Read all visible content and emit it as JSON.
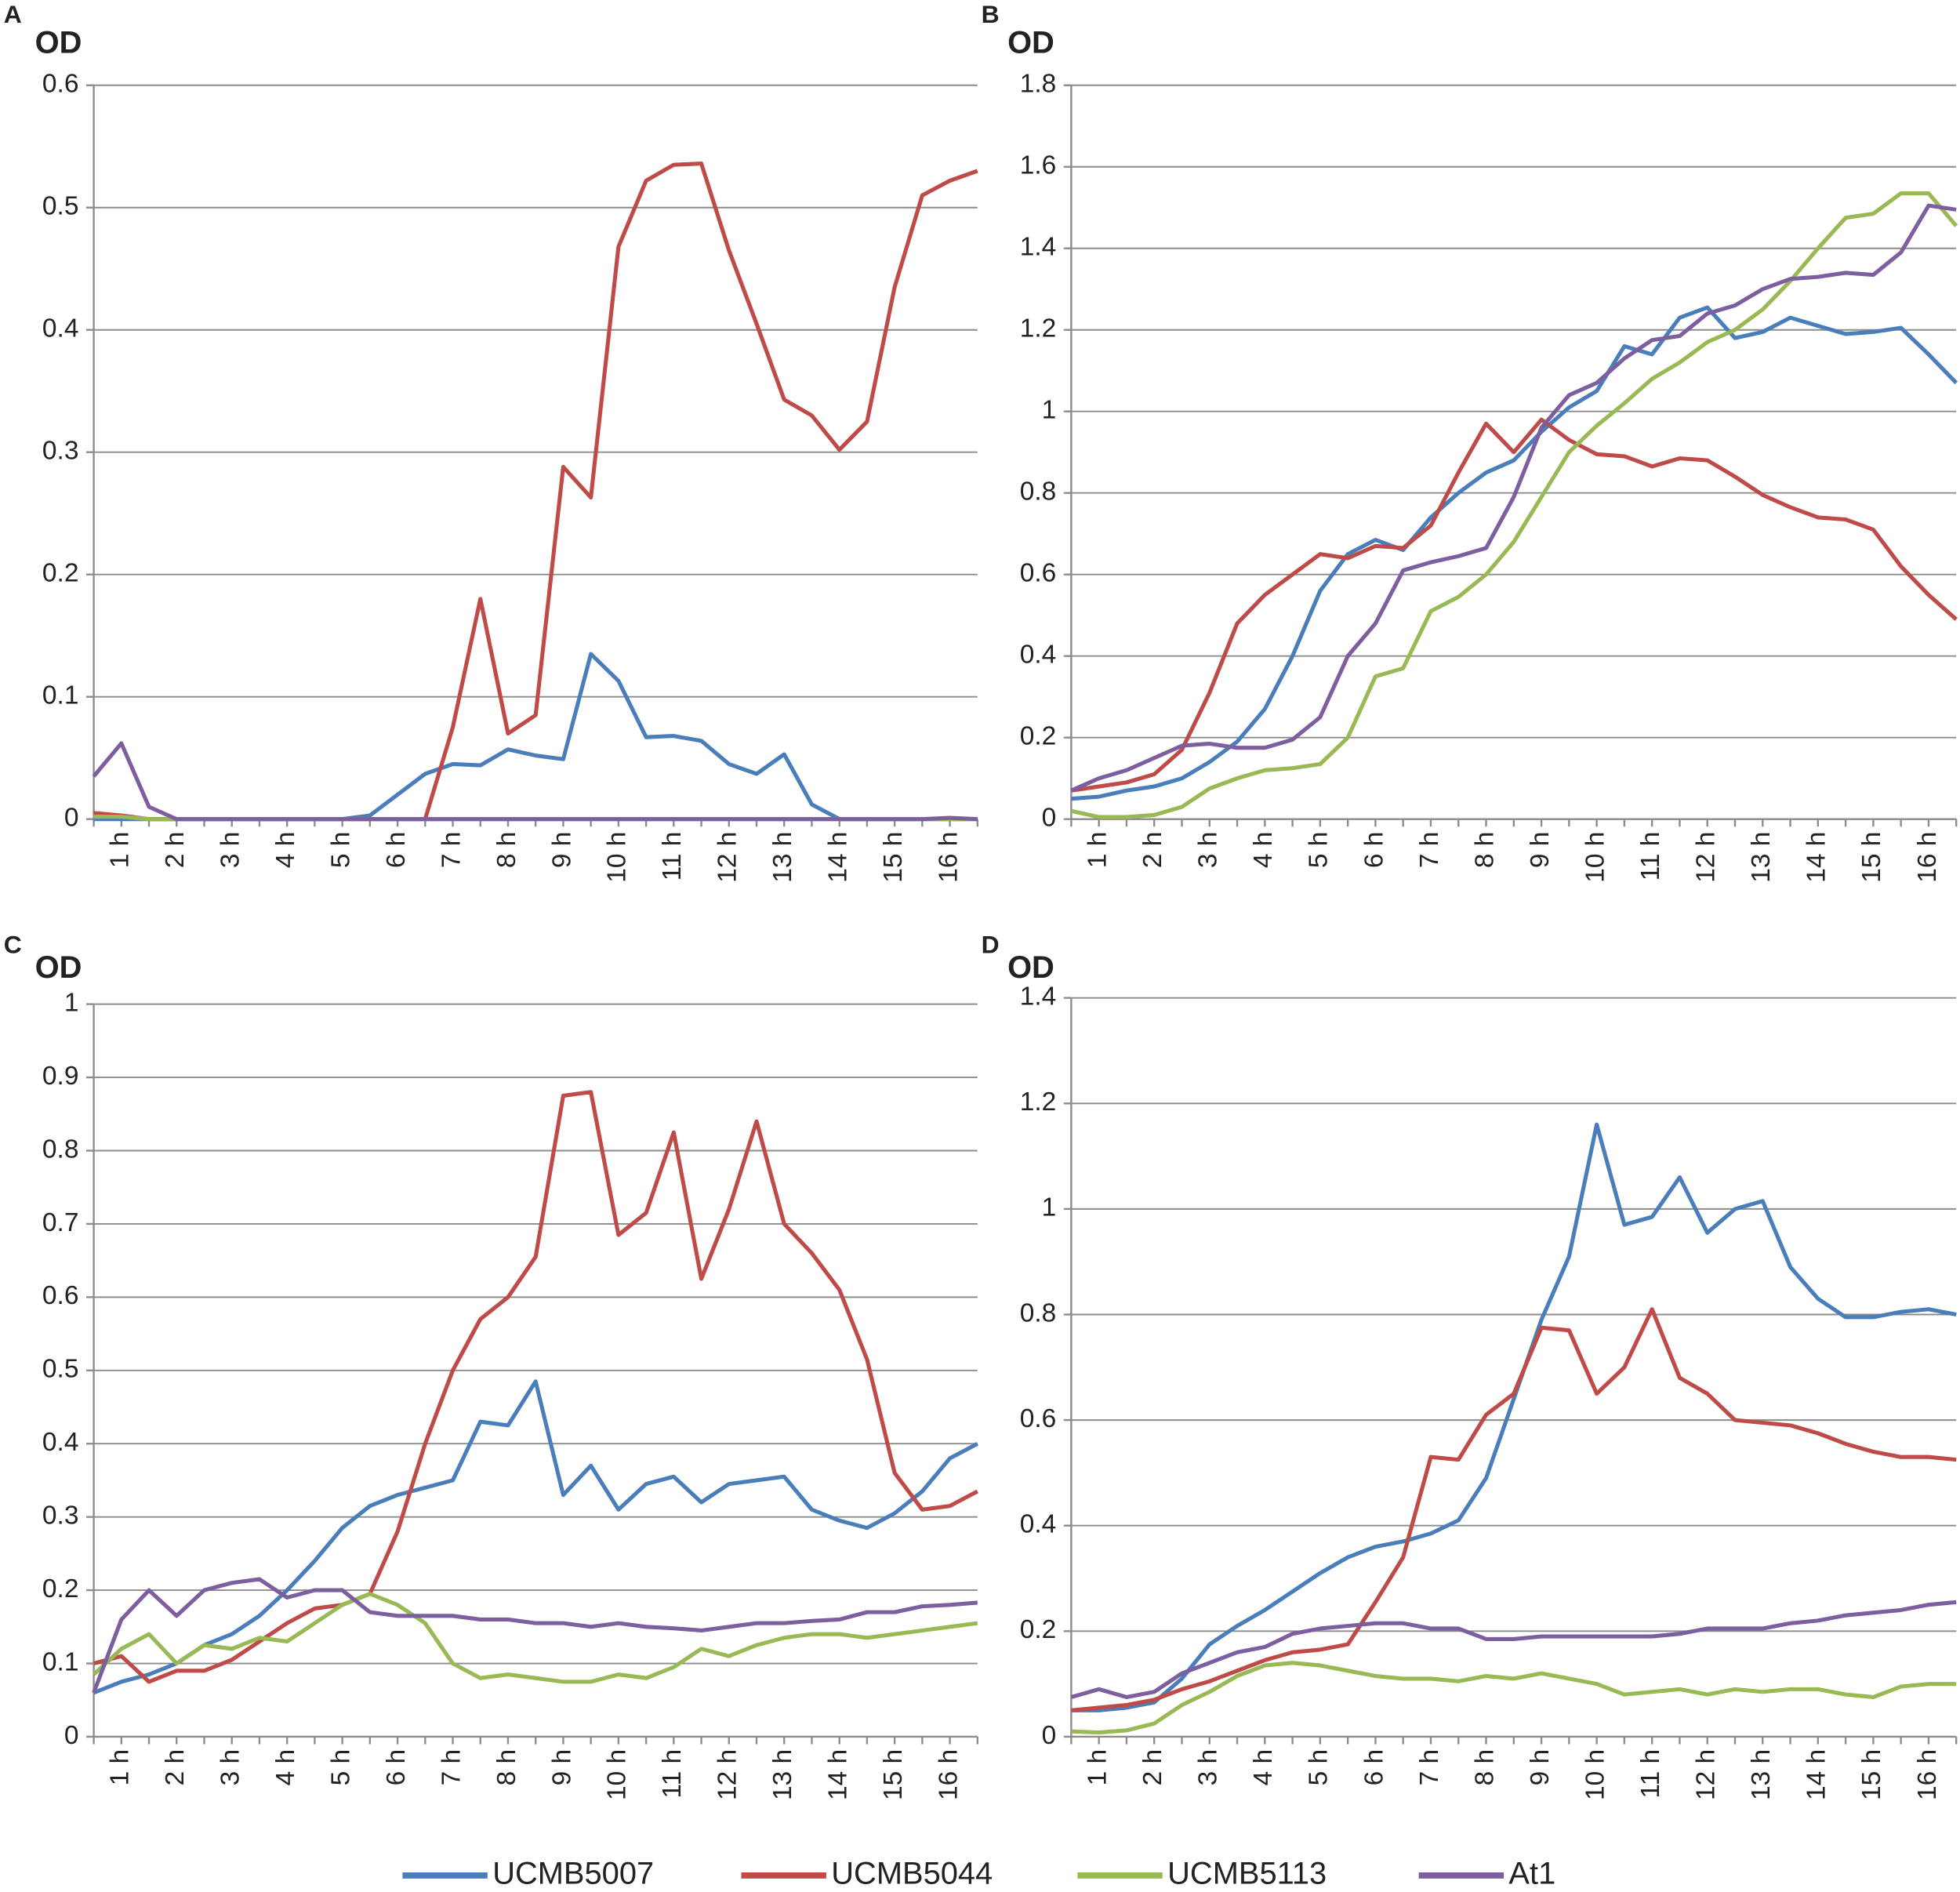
{
  "legend": [
    {
      "name": "UCMB5007",
      "color": "#4a7ebb"
    },
    {
      "name": "UCMB5044",
      "color": "#be4b48"
    },
    {
      "name": "UCMB5113",
      "color": "#98b954"
    },
    {
      "name": "At1",
      "color": "#7d5fa0"
    }
  ],
  "chart_data": [
    {
      "type": "line",
      "panel": "A",
      "ylabel": "OD",
      "categories": [
        null,
        "1 h",
        null,
        "2 h",
        null,
        "3 h",
        null,
        "4 h",
        null,
        "5 h",
        null,
        "6 h",
        null,
        "7 h",
        null,
        "8 h",
        null,
        "9 h",
        null,
        "10 h",
        null,
        "11 h",
        null,
        "12 h",
        null,
        "13 h",
        null,
        "14 h",
        null,
        "15 h",
        null,
        "16 h",
        null
      ],
      "ylim": [
        0,
        0.6
      ],
      "yticks": [
        0,
        0.1,
        0.2,
        0.3,
        0.4,
        0.5,
        0.6
      ],
      "grid": true,
      "series": [
        {
          "values": [
            0,
            0,
            0,
            0,
            0,
            0,
            0,
            0,
            0,
            0,
            0.003,
            0.02,
            0.037,
            0.045,
            0.044,
            0.057,
            0.052,
            0.049,
            0.135,
            0.113,
            0.067,
            0.068,
            0.064,
            0.045,
            0.037,
            0.053,
            0.012,
            0,
            0,
            0,
            0,
            0,
            0
          ]
        },
        {
          "values": [
            0.005,
            0.003,
            0,
            0,
            0,
            0,
            0,
            0,
            0,
            0,
            0,
            0,
            0,
            0.075,
            0.18,
            0.07,
            0.085,
            0.288,
            0.263,
            0.468,
            0.522,
            0.535,
            0.536,
            0.465,
            0.405,
            0.343,
            0.33,
            0.302,
            0.325,
            0.435,
            0.51,
            0.522,
            0.53
          ]
        },
        {
          "values": [
            0.002,
            0.002,
            0,
            0,
            0,
            0,
            0,
            0,
            0,
            0,
            0,
            0,
            0,
            0,
            0,
            0,
            0,
            0,
            0,
            0,
            0,
            0,
            0,
            0,
            0,
            0,
            0,
            0,
            0,
            0,
            0,
            0,
            0
          ]
        },
        {
          "values": [
            0.035,
            0.062,
            0.01,
            0,
            0,
            0,
            0,
            0,
            0,
            0,
            0,
            0,
            0,
            0,
            0,
            0,
            0,
            0,
            0,
            0,
            0,
            0,
            0,
            0,
            0,
            0,
            0,
            0,
            0,
            0,
            0,
            0.001,
            0
          ]
        }
      ]
    },
    {
      "type": "line",
      "panel": "B",
      "ylabel": "OD",
      "categories": [
        null,
        "1 h",
        null,
        "2 h",
        null,
        "3 h",
        null,
        "4 h",
        null,
        "5 h",
        null,
        "6 h",
        null,
        "7 h",
        null,
        "8 h",
        null,
        "9 h",
        null,
        "10 h",
        null,
        "11 h",
        null,
        "12 h",
        null,
        "13 h",
        null,
        "14 h",
        null,
        "15 h",
        null,
        "16 h",
        null
      ],
      "ylim": [
        0,
        1.8
      ],
      "yticks": [
        0,
        0.2,
        0.4,
        0.6,
        0.8,
        1,
        1.2,
        1.4,
        1.6,
        1.8
      ],
      "grid": true,
      "series": [
        {
          "values": [
            0.05,
            0.055,
            0.07,
            0.08,
            0.1,
            0.14,
            0.19,
            0.27,
            0.4,
            0.56,
            0.65,
            0.685,
            0.66,
            0.74,
            0.8,
            0.85,
            0.88,
            0.95,
            1.01,
            1.05,
            1.16,
            1.14,
            1.23,
            1.255,
            1.18,
            1.195,
            1.23,
            1.21,
            1.19,
            1.195,
            1.205,
            1.14,
            1.07
          ]
        },
        {
          "values": [
            0.07,
            0.08,
            0.09,
            0.11,
            0.17,
            0.31,
            0.48,
            0.55,
            0.6,
            0.65,
            0.64,
            0.67,
            0.665,
            0.72,
            0.85,
            0.97,
            0.9,
            0.98,
            0.93,
            0.895,
            0.89,
            0.865,
            0.885,
            0.88,
            0.84,
            0.795,
            0.765,
            0.74,
            0.735,
            0.71,
            0.62,
            0.55,
            0.49
          ]
        },
        {
          "values": [
            0.02,
            0.005,
            0.005,
            0.01,
            0.03,
            0.075,
            0.1,
            0.12,
            0.125,
            0.135,
            0.2,
            0.35,
            0.37,
            0.51,
            0.545,
            0.6,
            0.68,
            0.79,
            0.9,
            0.965,
            1.02,
            1.08,
            1.12,
            1.17,
            1.2,
            1.25,
            1.32,
            1.4,
            1.475,
            1.485,
            1.535,
            1.535,
            1.455
          ]
        },
        {
          "values": [
            0.07,
            0.1,
            0.12,
            0.15,
            0.18,
            0.185,
            0.175,
            0.175,
            0.195,
            0.25,
            0.4,
            0.48,
            0.61,
            0.63,
            0.645,
            0.665,
            0.79,
            0.96,
            1.04,
            1.07,
            1.13,
            1.175,
            1.185,
            1.24,
            1.26,
            1.3,
            1.325,
            1.33,
            1.34,
            1.335,
            1.39,
            1.505,
            1.495
          ]
        }
      ]
    },
    {
      "type": "line",
      "panel": "C",
      "ylabel": "OD",
      "categories": [
        null,
        "1 h",
        null,
        "2 h",
        null,
        "3 h",
        null,
        "4 h",
        null,
        "5 h",
        null,
        "6 h",
        null,
        "7 h",
        null,
        "8 h",
        null,
        "9 h",
        null,
        "10 h",
        null,
        "11 h",
        null,
        "12 h",
        null,
        "13 h",
        null,
        "14 h",
        null,
        "15 h",
        null,
        "16 h",
        null
      ],
      "ylim": [
        0,
        1
      ],
      "yticks": [
        0,
        0.1,
        0.2,
        0.3,
        0.4,
        0.5,
        0.6,
        0.7,
        0.8,
        0.9,
        1
      ],
      "grid": true,
      "series": [
        {
          "values": [
            0.06,
            0.075,
            0.085,
            0.1,
            0.125,
            0.14,
            0.165,
            0.2,
            0.24,
            0.285,
            0.315,
            0.33,
            0.34,
            0.35,
            0.43,
            0.425,
            0.485,
            0.33,
            0.37,
            0.31,
            0.345,
            0.355,
            0.32,
            0.345,
            0.35,
            0.355,
            0.31,
            0.295,
            0.285,
            0.305,
            0.335,
            0.38,
            0.4
          ]
        },
        {
          "values": [
            0.1,
            0.11,
            0.075,
            0.09,
            0.09,
            0.105,
            0.13,
            0.155,
            0.175,
            0.18,
            0.195,
            0.28,
            0.4,
            0.5,
            0.57,
            0.6,
            0.655,
            0.875,
            0.88,
            0.685,
            0.715,
            0.825,
            0.625,
            0.72,
            0.84,
            0.7,
            0.66,
            0.61,
            0.515,
            0.36,
            0.31,
            0.315,
            0.335
          ]
        },
        {
          "values": [
            0.085,
            0.12,
            0.14,
            0.1,
            0.125,
            0.12,
            0.135,
            0.13,
            0.155,
            0.18,
            0.195,
            0.18,
            0.155,
            0.1,
            0.08,
            0.085,
            0.08,
            0.075,
            0.075,
            0.085,
            0.08,
            0.095,
            0.12,
            0.11,
            0.125,
            0.135,
            0.14,
            0.14,
            0.135,
            0.14,
            0.145,
            0.15,
            0.155
          ]
        },
        {
          "values": [
            0.06,
            0.16,
            0.2,
            0.165,
            0.2,
            0.21,
            0.215,
            0.19,
            0.2,
            0.2,
            0.17,
            0.165,
            0.165,
            0.165,
            0.16,
            0.16,
            0.155,
            0.155,
            0.15,
            0.155,
            0.15,
            0.148,
            0.145,
            0.15,
            0.155,
            0.155,
            0.158,
            0.16,
            0.17,
            0.17,
            0.178,
            0.18,
            0.183
          ]
        }
      ]
    },
    {
      "type": "line",
      "panel": "D",
      "ylabel": "OD",
      "categories": [
        null,
        "1 h",
        null,
        "2 h",
        null,
        "3 h",
        null,
        "4 h",
        null,
        "5 h",
        null,
        "6 h",
        null,
        "7 h",
        null,
        "8 h",
        null,
        "9 h",
        null,
        "10 h",
        null,
        "11 h",
        null,
        "12 h",
        null,
        "13 h",
        null,
        "14 h",
        null,
        "15 h",
        null,
        "16 h",
        null
      ],
      "ylim": [
        0,
        1.4
      ],
      "yticks": [
        0,
        0.2,
        0.4,
        0.6,
        0.8,
        1,
        1.2,
        1.4
      ],
      "grid": true,
      "series": [
        {
          "values": [
            0.05,
            0.05,
            0.055,
            0.065,
            0.11,
            0.175,
            0.21,
            0.24,
            0.275,
            0.31,
            0.34,
            0.36,
            0.37,
            0.385,
            0.41,
            0.49,
            0.64,
            0.79,
            0.91,
            1.16,
            0.97,
            0.985,
            1.06,
            0.955,
            1.0,
            1.015,
            0.89,
            0.83,
            0.795,
            0.795,
            0.805,
            0.81,
            0.8
          ]
        },
        {
          "values": [
            0.05,
            0.055,
            0.06,
            0.07,
            0.09,
            0.105,
            0.125,
            0.145,
            0.16,
            0.165,
            0.175,
            0.255,
            0.34,
            0.53,
            0.525,
            0.61,
            0.65,
            0.775,
            0.77,
            0.65,
            0.7,
            0.81,
            0.68,
            0.65,
            0.6,
            0.595,
            0.59,
            0.575,
            0.555,
            0.54,
            0.53,
            0.53,
            0.525
          ]
        },
        {
          "values": [
            0.01,
            0.008,
            0.012,
            0.025,
            0.06,
            0.085,
            0.115,
            0.135,
            0.14,
            0.135,
            0.125,
            0.115,
            0.11,
            0.11,
            0.105,
            0.115,
            0.11,
            0.12,
            0.11,
            0.1,
            0.08,
            0.085,
            0.09,
            0.08,
            0.09,
            0.085,
            0.09,
            0.09,
            0.08,
            0.075,
            0.095,
            0.1,
            0.1
          ]
        },
        {
          "values": [
            0.075,
            0.09,
            0.075,
            0.085,
            0.12,
            0.14,
            0.16,
            0.17,
            0.195,
            0.205,
            0.21,
            0.215,
            0.215,
            0.205,
            0.205,
            0.185,
            0.185,
            0.19,
            0.19,
            0.19,
            0.19,
            0.19,
            0.195,
            0.205,
            0.205,
            0.205,
            0.215,
            0.22,
            0.23,
            0.235,
            0.24,
            0.25,
            0.255
          ]
        }
      ]
    }
  ]
}
